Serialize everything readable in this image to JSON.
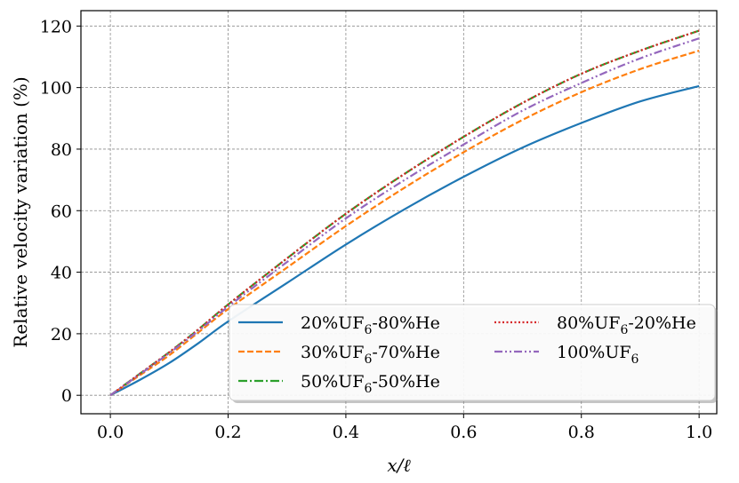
{
  "chart_data": {
    "type": "line",
    "xlabel": "x/ℓ",
    "ylabel": "Relative velocity variation (%)",
    "xlim": [
      -0.05,
      1.03
    ],
    "ylim": [
      -6,
      125
    ],
    "xticks": [
      0.0,
      0.2,
      0.4,
      0.6,
      0.8,
      1.0
    ],
    "xtick_labels": [
      "0.0",
      "0.2",
      "0.4",
      "0.6",
      "0.8",
      "1.0"
    ],
    "yticks": [
      0,
      20,
      40,
      60,
      80,
      100,
      120
    ],
    "ytick_labels": [
      "0",
      "20",
      "40",
      "60",
      "80",
      "100",
      "120"
    ],
    "grid": true,
    "legend_position": "lower-right",
    "x": [
      0.0,
      0.05,
      0.1,
      0.15,
      0.2,
      0.3,
      0.4,
      0.5,
      0.6,
      0.7,
      0.8,
      0.9,
      1.0
    ],
    "series": [
      {
        "name": "20%UF6-80%He",
        "label_main": "20%UF",
        "label_sub": "6",
        "label_tail": "-80%He",
        "color": "#1f77b4",
        "dash": "solid",
        "values": [
          0,
          5,
          10.5,
          17,
          24,
          36.5,
          49,
          60.5,
          71,
          80.5,
          88.5,
          95.5,
          100.5
        ]
      },
      {
        "name": "30%UF6-70%He",
        "label_main": "30%UF",
        "label_sub": "6",
        "label_tail": "-70%He",
        "color": "#ff7f0e",
        "dash": "dashed",
        "values": [
          0,
          6.5,
          13,
          20.5,
          28,
          41.5,
          55,
          67.5,
          79,
          89.5,
          98.5,
          106,
          112
        ]
      },
      {
        "name": "50%UF6-50%He",
        "label_main": "50%UF",
        "label_sub": "6",
        "label_tail": "-50%He",
        "color": "#2ca02c",
        "dash": "dashdot",
        "values": [
          0,
          7,
          14,
          21.5,
          29.5,
          44.5,
          59,
          72,
          84,
          95,
          104.5,
          112,
          118.5
        ]
      },
      {
        "name": "80%UF6-20%He",
        "label_main": "80%UF",
        "label_sub": "6",
        "label_tail": "-20%He",
        "color": "#d62728",
        "dash": "dotted",
        "values": [
          0,
          7,
          14,
          21.5,
          29.5,
          44.5,
          59,
          72,
          84,
          95,
          104.5,
          112,
          118.5
        ]
      },
      {
        "name": "100%UF6",
        "label_main": "100%UF",
        "label_sub": "6",
        "label_tail": "",
        "color": "#9467bd",
        "dash": "dashdotdot",
        "values": [
          0,
          6.8,
          13.7,
          21,
          28.8,
          43.3,
          57.5,
          70,
          81.5,
          92.5,
          101.5,
          109.5,
          116
        ]
      }
    ]
  }
}
